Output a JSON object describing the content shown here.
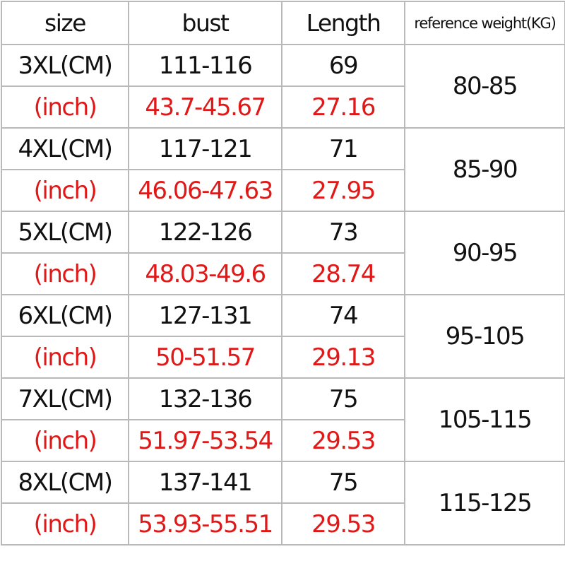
{
  "colors": {
    "red_text": "#e01818",
    "black_text": "#111111",
    "border": "#b9b9b9"
  },
  "headers": [
    "size",
    "bust",
    "Length",
    "reference weight(KG)"
  ],
  "rows": [
    {
      "size_cm": "3XL(CM)",
      "bust_cm": "111-116",
      "length_cm": "69",
      "inch_label": "(inch)",
      "bust_inch": "43.7-45.67",
      "length_inch": "27.16",
      "weight": "80-85"
    },
    {
      "size_cm": "4XL(CM)",
      "bust_cm": "117-121",
      "length_cm": "71",
      "inch_label": "(inch)",
      "bust_inch": "46.06-47.63",
      "length_inch": "27.95",
      "weight": "85-90"
    },
    {
      "size_cm": "5XL(CM)",
      "bust_cm": "122-126",
      "length_cm": "73",
      "inch_label": "(inch)",
      "bust_inch": "48.03-49.6",
      "length_inch": "28.74",
      "weight": "90-95"
    },
    {
      "size_cm": "6XL(CM)",
      "bust_cm": "127-131",
      "length_cm": "74",
      "inch_label": "(inch)",
      "bust_inch": "50-51.57",
      "length_inch": "29.13",
      "weight": "95-105"
    },
    {
      "size_cm": "7XL(CM)",
      "bust_cm": "132-136",
      "length_cm": "75",
      "inch_label": "(inch)",
      "bust_inch": "51.97-53.54",
      "length_inch": "29.53",
      "weight": "105-115"
    },
    {
      "size_cm": "8XL(CM)",
      "bust_cm": "137-141",
      "length_cm": "75",
      "inch_label": "(inch)",
      "bust_inch": "53.93-55.51",
      "length_inch": "29.53",
      "weight": "115-125"
    }
  ]
}
